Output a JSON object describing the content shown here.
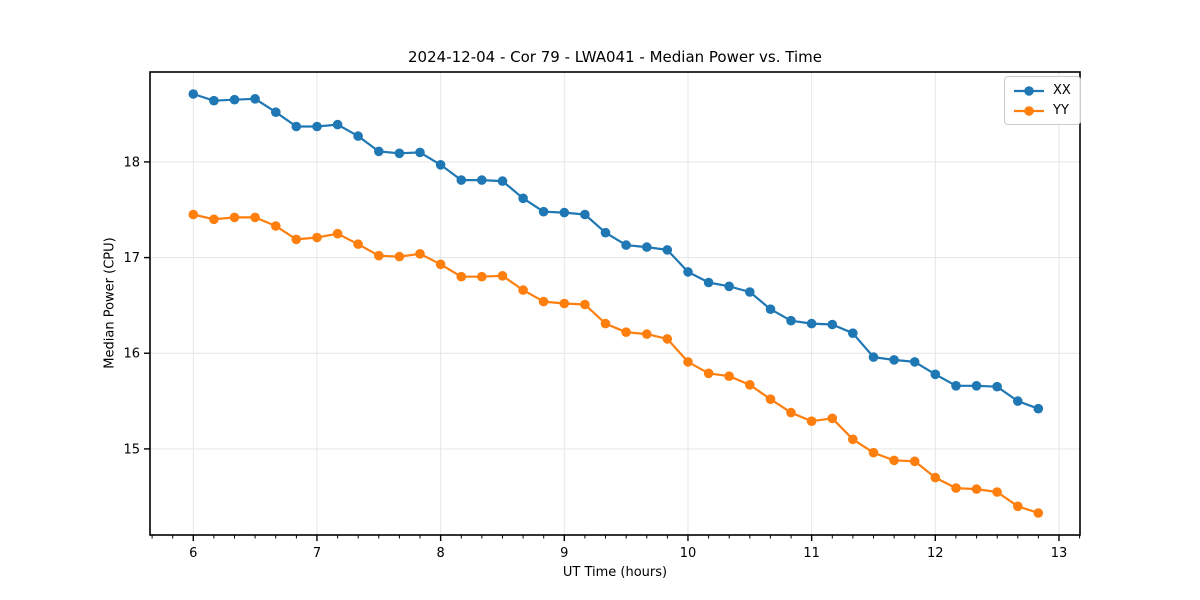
{
  "chart_data": {
    "type": "line",
    "title": "2024-12-04 - Cor 79 - LWA041 - Median Power vs. Time",
    "xlabel": "UT Time (hours)",
    "ylabel": "Median Power (CPU)",
    "xlim": [
      5.65,
      13.17
    ],
    "ylim": [
      14.1,
      18.94
    ],
    "xticks": [
      6,
      7,
      8,
      9,
      10,
      11,
      12,
      13
    ],
    "yticks": [
      15,
      16,
      17,
      18
    ],
    "x_minor_step": 0.16667,
    "grid": true,
    "grid_color": "#e6e6e6",
    "axis_color": "#000000",
    "legend_position": "upper right",
    "marker": "circle",
    "x": [
      6.0,
      6.167,
      6.333,
      6.5,
      6.667,
      6.833,
      7.0,
      7.167,
      7.333,
      7.5,
      7.667,
      7.833,
      8.0,
      8.167,
      8.333,
      8.5,
      8.667,
      8.833,
      9.0,
      9.167,
      9.333,
      9.5,
      9.667,
      9.833,
      10.0,
      10.167,
      10.333,
      10.5,
      10.667,
      10.833,
      11.0,
      11.167,
      11.333,
      11.5,
      11.667,
      11.833,
      12.0,
      12.167,
      12.333,
      12.5,
      12.667,
      12.833
    ],
    "series": [
      {
        "name": "XX",
        "color": "#1f77b4",
        "values": [
          18.71,
          18.64,
          18.65,
          18.66,
          18.52,
          18.37,
          18.37,
          18.39,
          18.27,
          18.11,
          18.09,
          18.1,
          17.97,
          17.81,
          17.81,
          17.8,
          17.62,
          17.48,
          17.47,
          17.45,
          17.26,
          17.13,
          17.11,
          17.08,
          16.85,
          16.74,
          16.7,
          16.64,
          16.46,
          16.34,
          16.31,
          16.3,
          16.21,
          15.96,
          15.93,
          15.91,
          15.78,
          15.66,
          15.66,
          15.65,
          15.5,
          15.42
        ]
      },
      {
        "name": "YY",
        "color": "#ff7f0e",
        "values": [
          17.45,
          17.4,
          17.42,
          17.42,
          17.33,
          17.19,
          17.21,
          17.25,
          17.14,
          17.02,
          17.01,
          17.04,
          16.93,
          16.8,
          16.8,
          16.81,
          16.66,
          16.54,
          16.52,
          16.51,
          16.31,
          16.22,
          16.2,
          16.15,
          15.91,
          15.79,
          15.76,
          15.67,
          15.52,
          15.38,
          15.29,
          15.32,
          15.1,
          14.96,
          14.88,
          14.87,
          14.7,
          14.59,
          14.58,
          14.55,
          14.4,
          14.33
        ]
      }
    ]
  }
}
